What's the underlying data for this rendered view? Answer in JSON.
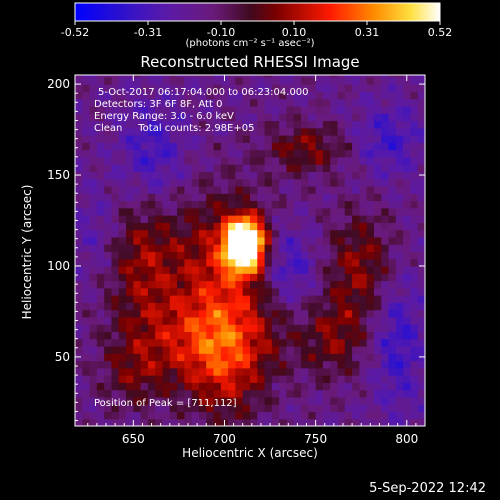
{
  "chart_data": {
    "type": "heatmap",
    "title": "Reconstructed RHESSI Image",
    "xlabel": "Heliocentric X (arcsec)",
    "ylabel": "Heliocentric Y (arcsec)",
    "xlim": [
      618,
      810
    ],
    "ylim": [
      12,
      205
    ],
    "x_ticks": [
      650,
      700,
      750,
      800
    ],
    "y_ticks": [
      50,
      100,
      150,
      200
    ],
    "colorbar": {
      "label": "(photons cm⁻² s⁻¹ asec⁻²)",
      "range": [
        -0.52,
        0.52
      ],
      "ticks": [
        "-0.52",
        "-0.31",
        "-0.10",
        "0.10",
        "0.31",
        "0.52"
      ]
    },
    "annotations": [
      "5-Oct-2017 06:17:04.000 to 06:23:04.000",
      "Detectors: 3F 6F 8F, Att 0",
      "Energy Range: 3.0 - 6.0 keV",
      "Clean     Total counts: 2.98E+05"
    ],
    "peak_label": "Position of Peak = [711,112]",
    "peak": [
      711,
      112
    ],
    "grid": false,
    "colormap": [
      "#0000ff",
      "#4b0082",
      "#8a2be2",
      "#800000",
      "#ff0000",
      "#ffa500",
      "#ffff66",
      "#ffffff"
    ]
  },
  "footer": "5-Sep-2022 12:42"
}
